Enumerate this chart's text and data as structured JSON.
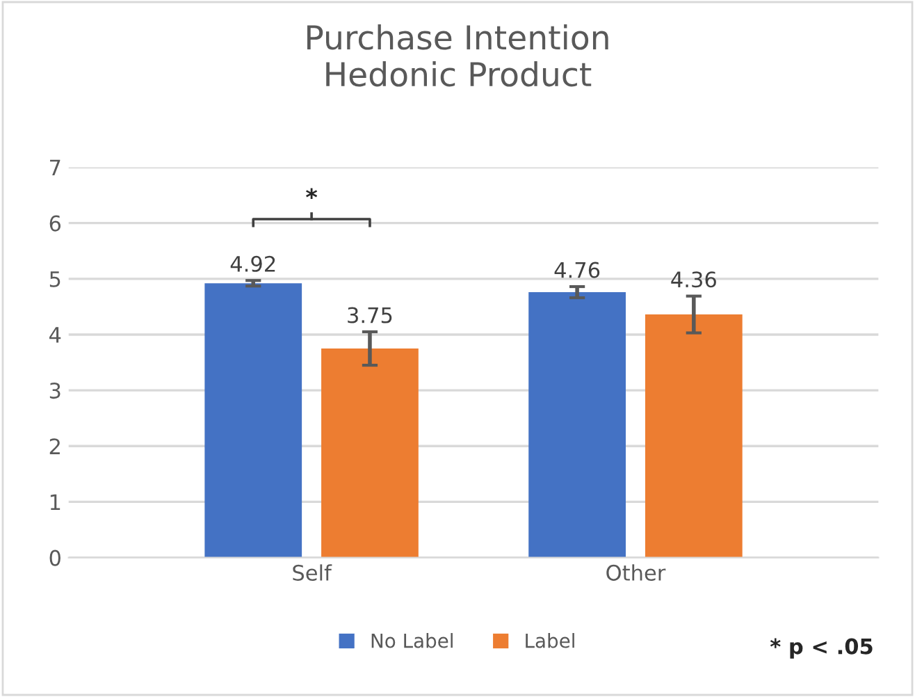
{
  "chart_data": {
    "type": "bar",
    "title": "Purchase Intention\nHedonic Product",
    "categories": [
      "Self",
      "Other"
    ],
    "series": [
      {
        "name": "No Label",
        "color": "#4472c4",
        "values": [
          4.92,
          4.76
        ],
        "errors": [
          0.05,
          0.1
        ]
      },
      {
        "name": "Label",
        "color": "#ed7d31",
        "values": [
          3.75,
          4.36
        ],
        "errors": [
          0.3,
          0.33
        ]
      }
    ],
    "ylim": [
      0,
      7
    ],
    "yticks": [
      0,
      1,
      2,
      3,
      4,
      5,
      6,
      7
    ],
    "grid": "y",
    "legend": "bottom",
    "data_labels": true,
    "annotations": [
      "*",
      "* p < .05"
    ]
  }
}
